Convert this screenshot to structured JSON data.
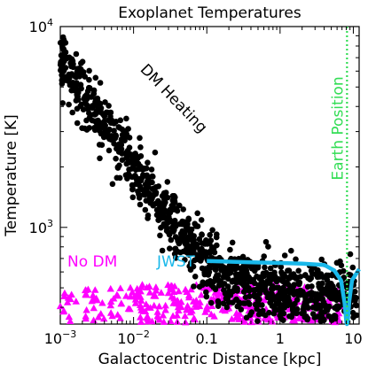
{
  "chart_data": {
    "type": "scatter",
    "title": "Exoplanet Temperatures",
    "xlabel": "Galactocentric Distance [kpc]",
    "ylabel": "Temperature [K]",
    "xscale": "log",
    "yscale": "log",
    "xlim": [
      0.001,
      12
    ],
    "ylim": [
      330,
      10000
    ],
    "x_ticks": [
      {
        "value": 0.001,
        "base": "10",
        "exp": "−3"
      },
      {
        "value": 0.01,
        "base": "10",
        "exp": "−2"
      },
      {
        "value": 0.1,
        "label": "0.1"
      },
      {
        "value": 1,
        "label": "1"
      },
      {
        "value": 10,
        "label": "10"
      }
    ],
    "y_ticks": [
      {
        "value": 1000,
        "base": "10",
        "exp": "3"
      },
      {
        "value": 10000,
        "base": "10",
        "exp": "4"
      }
    ],
    "grid": false,
    "annotations": {
      "dm_heating": {
        "text": "DM Heating",
        "color": "#000000"
      },
      "no_dm": {
        "text": "No DM",
        "color": "#ff00ff"
      },
      "jwst": {
        "text": "JWST",
        "color": "#19b8ea"
      },
      "earth": {
        "text": "Earth Position",
        "color": "#33dd55"
      }
    },
    "earth_position_kpc": 8.2,
    "series": [
      {
        "key": "dm",
        "marker": "circle",
        "color": "#000000",
        "count": 1100,
        "trend": {
          "log10T_at_1e-3_kpc": 3.84,
          "slope_log10T_per_dex": -0.56,
          "floor_K": 450,
          "scatter_dex": 0.08
        }
      },
      {
        "key": "nodm",
        "marker": "triangle",
        "color": "#ff00ff",
        "count": 340,
        "range_K": [
          330,
          520
        ]
      },
      {
        "key": "jwst",
        "marker": "line",
        "color": "#19b8ea",
        "x": [
          0.1,
          0.2,
          0.4,
          1,
          2,
          4,
          5.5,
          6.8,
          7.6,
          8.0,
          8.2,
          8.4,
          8.8,
          9.6,
          12
        ],
        "y": [
          680,
          675,
          670,
          665,
          660,
          650,
          610,
          545,
          420,
          340,
          330,
          340,
          430,
          545,
          620
        ]
      }
    ]
  }
}
